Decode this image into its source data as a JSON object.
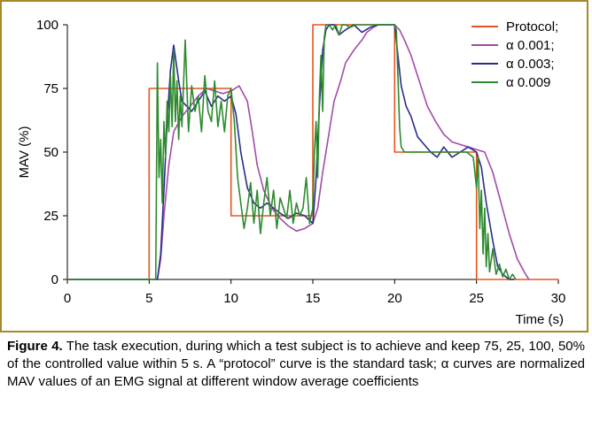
{
  "chart_data": {
    "type": "line",
    "title": "",
    "xlabel": "Time (s)",
    "ylabel": "MAV (%)",
    "xlim": [
      0,
      30
    ],
    "ylim": [
      0,
      100
    ],
    "xticks": [
      0,
      5,
      10,
      15,
      20,
      25,
      30
    ],
    "yticks": [
      0,
      25,
      50,
      75,
      100
    ],
    "grid": false,
    "legend_position": "top-right",
    "series": [
      {
        "name": "Protocol;",
        "color": "#e8551c",
        "x": [
          0,
          5,
          5,
          10,
          10,
          15,
          15,
          20,
          20,
          25,
          25,
          30
        ],
        "y": [
          0,
          0,
          75,
          75,
          25,
          25,
          100,
          100,
          50,
          50,
          0,
          0
        ]
      },
      {
        "name": "α 0.001;",
        "color": "#a34aa8",
        "x": [
          0,
          5.5,
          5.7,
          5.9,
          6.2,
          6.5,
          7,
          7.5,
          8,
          8.5,
          9,
          9.5,
          10,
          10.5,
          11,
          11.3,
          11.6,
          12,
          12.5,
          13,
          13.5,
          14,
          14.5,
          15,
          15.3,
          15.6,
          16,
          16.3,
          16.7,
          17,
          17.5,
          18,
          18.3,
          18.7,
          19,
          19.5,
          20,
          20.3,
          20.6,
          21,
          21.5,
          22,
          22.5,
          23,
          23.5,
          24,
          24.5,
          25,
          25.5,
          26,
          26.5,
          27,
          27.5,
          28,
          28.2
        ],
        "y": [
          0,
          0,
          8,
          25,
          45,
          58,
          64,
          68,
          72,
          75,
          74,
          73,
          74,
          76,
          70,
          58,
          45,
          35,
          28,
          24,
          21,
          19,
          20,
          22,
          28,
          42,
          58,
          70,
          78,
          85,
          90,
          94,
          97,
          99,
          100,
          100,
          100,
          98,
          94,
          88,
          78,
          68,
          62,
          57,
          54,
          53,
          52,
          51,
          50,
          42,
          30,
          18,
          8,
          2,
          0
        ]
      },
      {
        "name": "α 0.003;",
        "color": "#2a2c8c",
        "x": [
          0,
          5.5,
          5.7,
          5.9,
          6.1,
          6.3,
          6.5,
          6.8,
          7,
          7.3,
          7.6,
          8,
          8.4,
          8.8,
          9.2,
          9.6,
          10,
          10.3,
          10.6,
          11,
          11.4,
          11.8,
          12.2,
          12.6,
          13,
          13.5,
          14,
          14.5,
          15,
          15.2,
          15.4,
          15.6,
          15.8,
          16,
          16.3,
          16.6,
          17,
          17.5,
          18,
          18.5,
          19,
          19.5,
          20,
          20.2,
          20.4,
          20.7,
          21,
          21.4,
          21.8,
          22.2,
          22.6,
          23,
          23.5,
          24,
          24.5,
          25,
          25.3,
          25.6,
          26,
          26.3,
          26.6,
          27,
          27.3
        ],
        "y": [
          0,
          0,
          10,
          35,
          62,
          82,
          92,
          78,
          70,
          68,
          66,
          70,
          74,
          68,
          72,
          70,
          72,
          65,
          50,
          36,
          30,
          28,
          30,
          28,
          26,
          24,
          26,
          25,
          22,
          40,
          68,
          90,
          98,
          100,
          100,
          96,
          98,
          100,
          97,
          99,
          100,
          100,
          100,
          88,
          76,
          68,
          64,
          56,
          53,
          50,
          48,
          52,
          48,
          50,
          52,
          50,
          44,
          30,
          15,
          5,
          2,
          0,
          0
        ]
      },
      {
        "name": "α 0.009",
        "color": "#2e8a2e",
        "x": [
          0,
          5.4,
          5.5,
          5.6,
          5.7,
          5.8,
          5.9,
          6.0,
          6.1,
          6.2,
          6.3,
          6.4,
          6.5,
          6.6,
          6.7,
          6.8,
          6.9,
          7.0,
          7.2,
          7.4,
          7.6,
          7.8,
          8.0,
          8.2,
          8.4,
          8.6,
          8.8,
          9.0,
          9.2,
          9.4,
          9.6,
          9.8,
          10.0,
          10.2,
          10.4,
          10.6,
          10.8,
          11.0,
          11.2,
          11.4,
          11.6,
          11.8,
          12.0,
          12.2,
          12.4,
          12.6,
          12.8,
          13.0,
          13.2,
          13.4,
          13.6,
          13.8,
          14.0,
          14.2,
          14.4,
          14.6,
          14.8,
          15.0,
          15.1,
          15.2,
          15.3,
          15.4,
          15.5,
          15.6,
          15.7,
          15.8,
          16.0,
          16.2,
          16.4,
          16.6,
          16.8,
          17.0,
          17.3,
          17.6,
          18.0,
          18.5,
          19.0,
          19.5,
          20.0,
          20.1,
          20.2,
          20.3,
          20.4,
          20.6,
          20.8,
          21.0,
          21.3,
          21.6,
          22.0,
          22.4,
          22.8,
          23.2,
          23.6,
          24.0,
          24.4,
          24.8,
          25.0,
          25.1,
          25.2,
          25.3,
          25.4,
          25.5,
          25.6,
          25.7,
          25.8,
          26.0,
          26.2,
          26.4,
          26.6,
          26.8,
          27.0,
          27.2,
          27.4
        ],
        "y": [
          0,
          0,
          85,
          40,
          55,
          30,
          62,
          48,
          70,
          58,
          80,
          60,
          90,
          62,
          78,
          55,
          72,
          60,
          94,
          58,
          76,
          66,
          72,
          58,
          80,
          66,
          62,
          78,
          60,
          70,
          58,
          72,
          75,
          62,
          40,
          30,
          20,
          28,
          38,
          22,
          35,
          18,
          30,
          40,
          25,
          35,
          20,
          32,
          28,
          24,
          35,
          22,
          30,
          25,
          28,
          40,
          22,
          28,
          50,
          62,
          40,
          72,
          88,
          66,
          95,
          100,
          100,
          98,
          100,
          96,
          100,
          100,
          99,
          100,
          100,
          100,
          100,
          100,
          100,
          98,
          80,
          60,
          52,
          50,
          50,
          50,
          50,
          50,
          50,
          50,
          50,
          50,
          50,
          50,
          50,
          48,
          36,
          48,
          20,
          35,
          10,
          28,
          5,
          18,
          3,
          12,
          2,
          6,
          1,
          4,
          0,
          2,
          0
        ]
      }
    ]
  },
  "caption": {
    "label": "Figure 4.",
    "text": " The task execution, during which a test subject is to achieve and keep 75, 25, 100, 50% of the controlled value within 5 s. A “protocol” curve is the standard task; α curves are normalized MAV values of an EMG signal at different window average coefficients"
  }
}
